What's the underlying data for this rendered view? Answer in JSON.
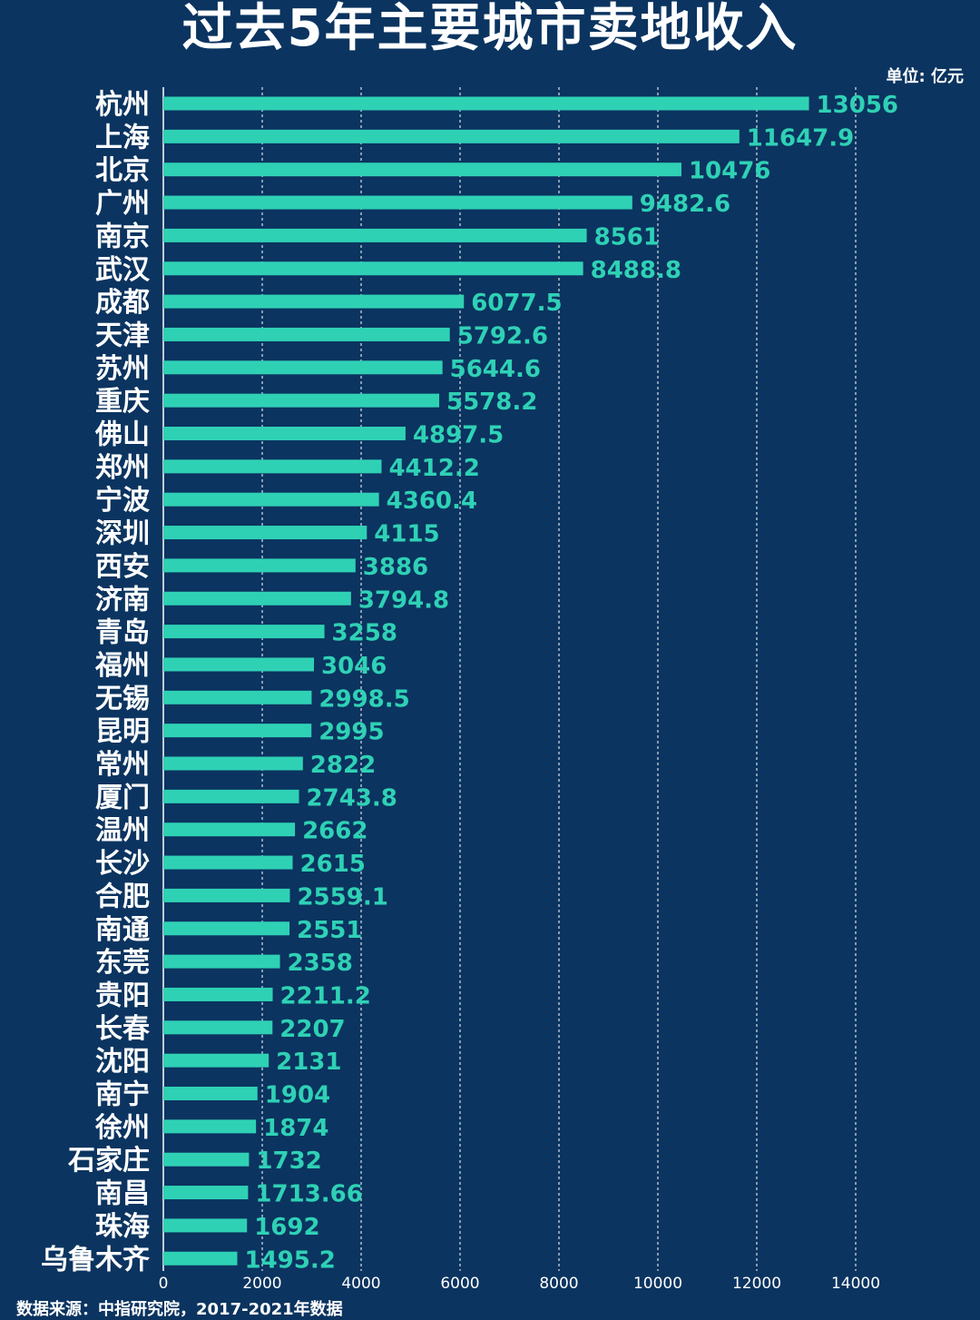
{
  "title": "过去5年主要城市卖地收入",
  "unit": "单位: 亿元",
  "source": "数据来源：中指研究院，2017-2021年数据",
  "colors": {
    "background": "#0b3460",
    "bar": "#2fd1b5",
    "text": "#ffffff"
  },
  "chart_data": {
    "type": "bar",
    "orientation": "horizontal",
    "title": "过去5年主要城市卖地收入",
    "xlabel": "",
    "ylabel": "",
    "xlim": [
      0,
      14000
    ],
    "ticks": [
      "0",
      "2000",
      "4000",
      "6000",
      "8000",
      "10000",
      "12000",
      "14000"
    ],
    "grid": true,
    "categories": [
      "杭州",
      "上海",
      "北京",
      "广州",
      "南京",
      "武汉",
      "成都",
      "天津",
      "苏州",
      "重庆",
      "佛山",
      "郑州",
      "宁波",
      "深圳",
      "西安",
      "济南",
      "青岛",
      "福州",
      "无锡",
      "昆明",
      "常州",
      "厦门",
      "温州",
      "长沙",
      "合肥",
      "南通",
      "东莞",
      "贵阳",
      "长春",
      "沈阳",
      "南宁",
      "徐州",
      "石家庄",
      "南昌",
      "珠海",
      "乌鲁木齐"
    ],
    "values": [
      13056,
      11647.9,
      10476,
      9482.6,
      8561,
      8488.8,
      6077.5,
      5792.6,
      5644.6,
      5578.2,
      4897.5,
      4412.2,
      4360.4,
      4115,
      3886,
      3794.8,
      3258,
      3046,
      2998.5,
      2995,
      2822,
      2743.8,
      2662,
      2615,
      2559.1,
      2551,
      2358,
      2211.2,
      2207,
      2131,
      1904,
      1874,
      1732,
      1713.66,
      1692,
      1495.2
    ],
    "value_labels": [
      "13056",
      "11647.9",
      "10476",
      "9482.6",
      "8561",
      "8488.8",
      "6077.5",
      "5792.6",
      "5644.6",
      "5578.2",
      "4897.5",
      "4412.2",
      "4360.4",
      "4115",
      "3886",
      "3794.8",
      "3258",
      "3046",
      "2998.5",
      "2995",
      "2822",
      "2743.8",
      "2662",
      "2615",
      "2559.1",
      "2551",
      "2358",
      "2211.2",
      "2207",
      "2131",
      "1904",
      "1874",
      "1732",
      "1713.66",
      "1692",
      "1495.2"
    ]
  }
}
